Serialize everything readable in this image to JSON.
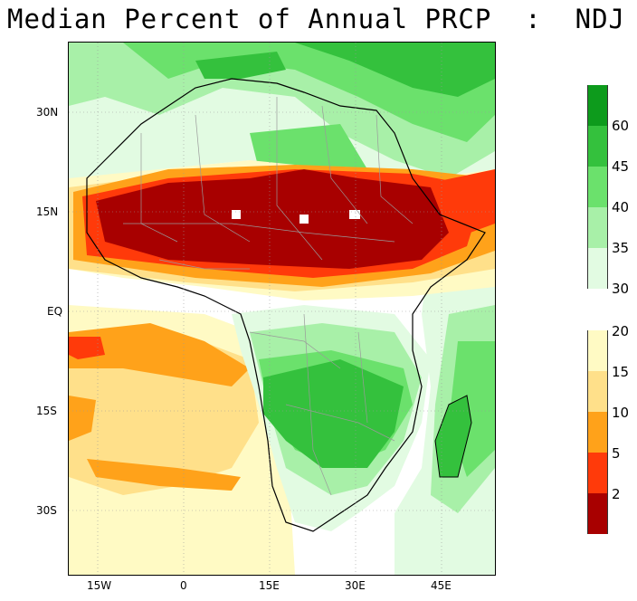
{
  "title": "Median Percent of Annual PRCP  :  NDJ",
  "lat_labels": [
    "30N",
    "15N",
    "EQ",
    "15S",
    "30S"
  ],
  "lon_labels": [
    "15W",
    "0",
    "15E",
    "30E",
    "45E"
  ],
  "colorbar_upper": [
    {
      "label": "60",
      "color": "#0d9b1c"
    },
    {
      "label": "45",
      "color": "#34c13d"
    },
    {
      "label": "40",
      "color": "#6be16c"
    },
    {
      "label": "35",
      "color": "#a8f0a8"
    },
    {
      "label": "30",
      "color": "#e2fbe2"
    }
  ],
  "colorbar_lower": [
    {
      "label": "20",
      "color": "#fffac4"
    },
    {
      "label": "15",
      "color": "#ffe08a"
    },
    {
      "label": "10",
      "color": "#ffa21a"
    },
    {
      "label": "5",
      "color": "#ff3a0a"
    },
    {
      "label": "2",
      "color": "#a80000"
    }
  ],
  "colors": {
    "dry_extreme": "#a80000",
    "dry_very": "#ff3a0a",
    "dry": "#ffa21a",
    "dry_mod": "#ffe08a",
    "dry_light": "#fffac4",
    "wet_light": "#e2fbe2",
    "wet": "#a8f0a8",
    "wet_mod": "#6be16c",
    "wet_high": "#34c13d",
    "wet_very": "#0d9b1c"
  }
}
